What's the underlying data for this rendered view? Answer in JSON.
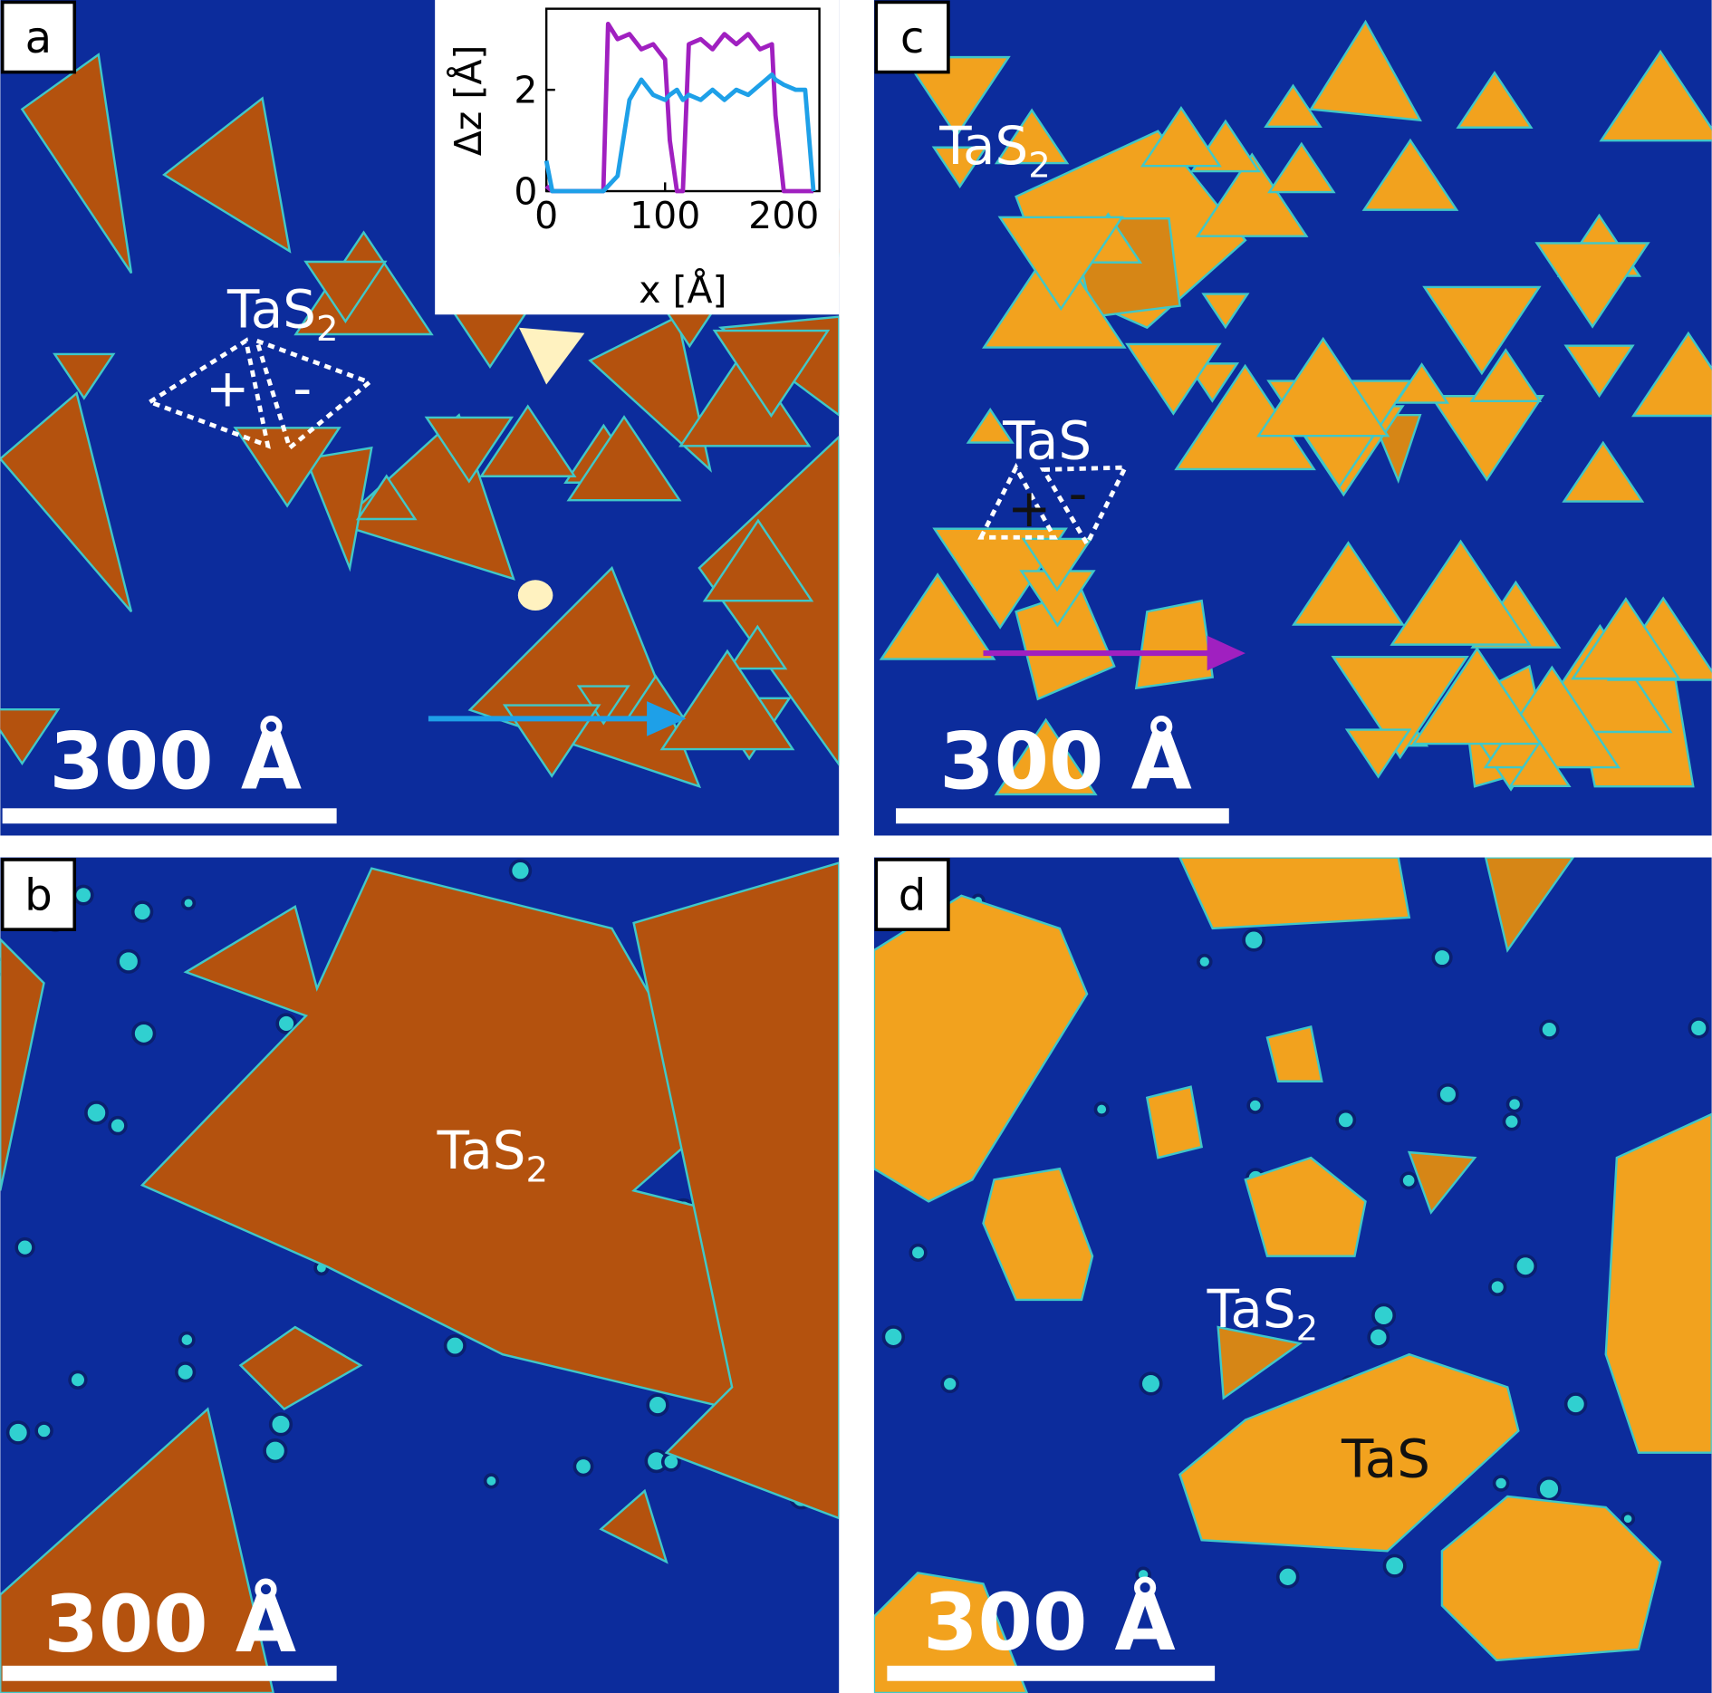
{
  "panels": [
    {
      "label": "a",
      "scale_bar": "300 Å",
      "annotations": [
        {
          "text": "TaS",
          "sub": "2"
        },
        {
          "text": "+"
        },
        {
          "text": "-"
        }
      ]
    },
    {
      "label": "b",
      "scale_bar": "300 Å",
      "annotations": [
        {
          "text": "TaS",
          "sub": "2"
        }
      ]
    },
    {
      "label": "c",
      "scale_bar": "300 Å",
      "annotations": [
        {
          "text": "TaS",
          "sub": "2"
        },
        {
          "text": "TaS"
        },
        {
          "text": "+"
        },
        {
          "text": "-"
        }
      ]
    },
    {
      "label": "d",
      "scale_bar": "300 Å",
      "annotations": [
        {
          "text": "TaS",
          "sub": "2"
        },
        {
          "text": "TaS"
        }
      ]
    }
  ],
  "chart_data": {
    "type": "line",
    "x_label": "x [Å]",
    "y_label": "Δz [Å]",
    "x": [
      0,
      5,
      10,
      20,
      30,
      40,
      48,
      52,
      60,
      70,
      80,
      90,
      100,
      104,
      110,
      115,
      120,
      130,
      140,
      150,
      160,
      170,
      180,
      190,
      193,
      200,
      210,
      218,
      225
    ],
    "series": [
      {
        "color": "#a020c0",
        "values": [
          0.1,
          0,
          0,
          0,
          0,
          0,
          0,
          3.3,
          3.0,
          3.1,
          2.8,
          2.9,
          2.6,
          1.0,
          0,
          0,
          2.9,
          3.0,
          2.8,
          3.1,
          2.9,
          3.1,
          2.8,
          2.9,
          1.5,
          0,
          0,
          0,
          0
        ]
      },
      {
        "color": "#1ea0e8",
        "values": [
          0.6,
          0,
          0,
          0,
          0,
          0,
          0,
          0.1,
          0.3,
          1.8,
          2.2,
          1.9,
          1.8,
          1.9,
          2.0,
          1.8,
          1.9,
          1.8,
          2.0,
          1.8,
          2.0,
          1.9,
          2.1,
          2.3,
          2.2,
          2.1,
          2.0,
          2.0,
          0
        ]
      }
    ],
    "xlim": [
      0,
      230
    ],
    "ylim": [
      0,
      3.6
    ],
    "xticks": [
      0,
      100,
      200
    ],
    "yticks": [
      0,
      2
    ]
  }
}
